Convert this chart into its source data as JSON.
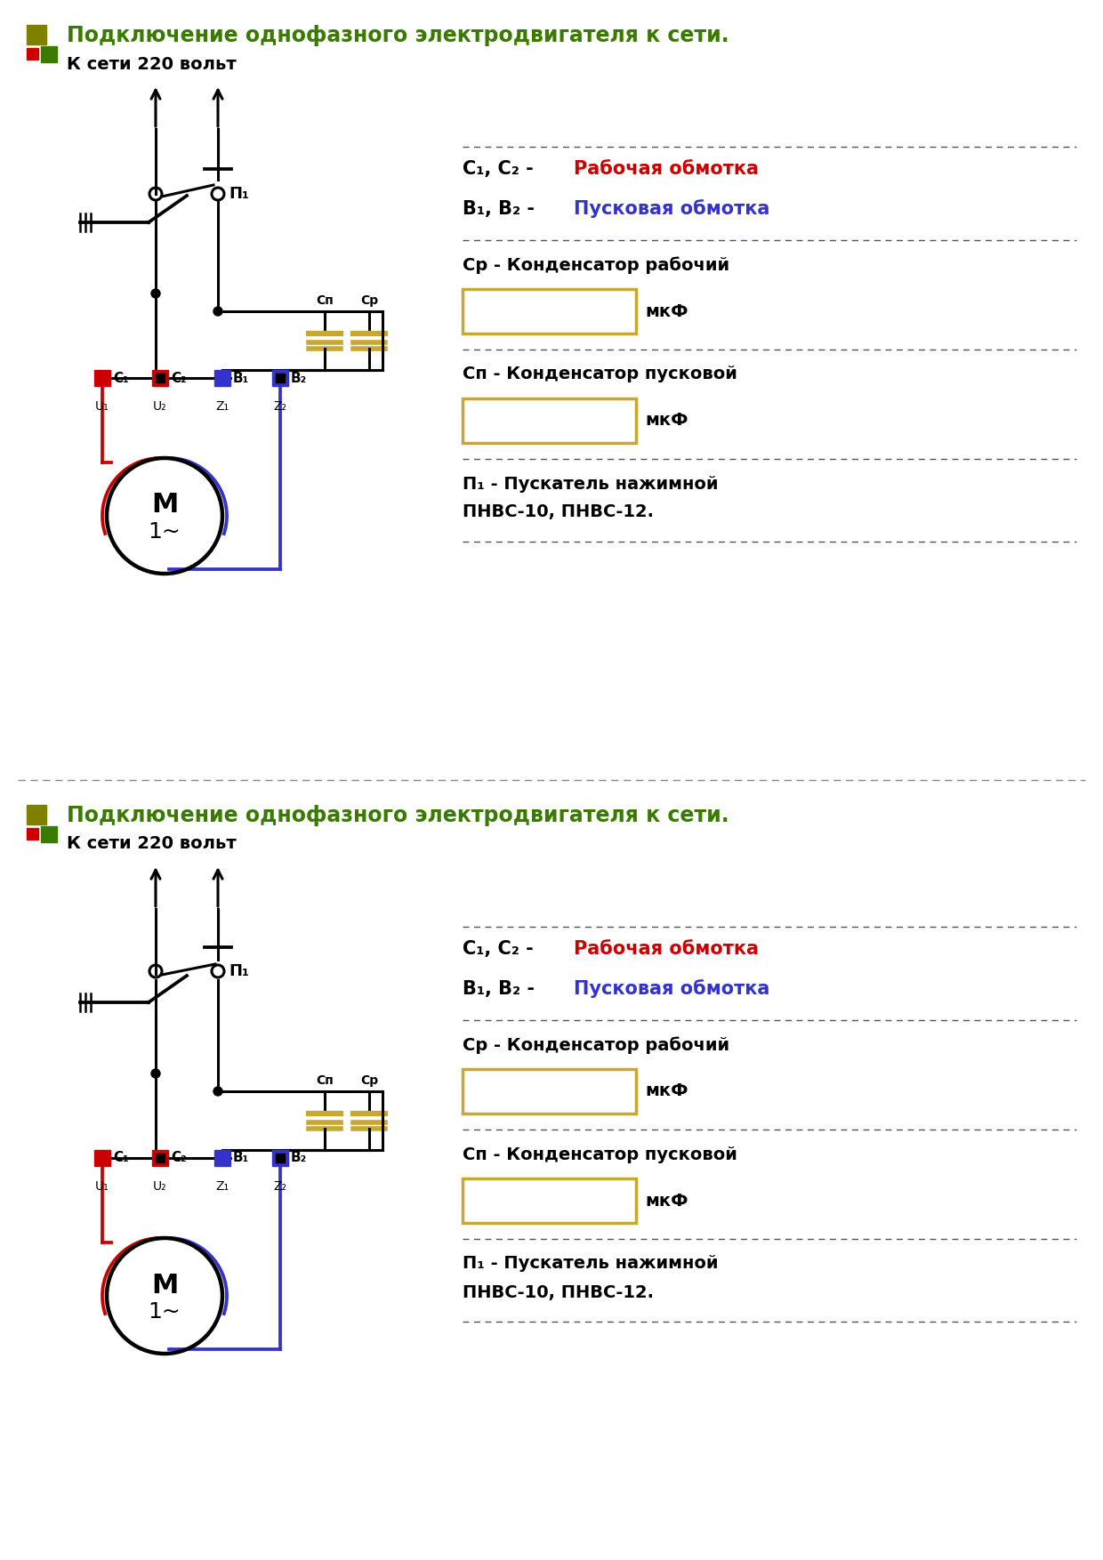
{
  "title": "Подключение однофазного электродвигателя к сети.",
  "title_color": "#3a7a00",
  "bg_color": "#ffffff",
  "subtitle_network": "К сети 220 вольт",
  "label_C1C2_black": "С₁, С₂ - ",
  "label_C1C2_red": "Рабочая обмотка",
  "label_B1B2_black": "В₁, В₂ - ",
  "label_B1B2_blue": "Пусковая обмотка",
  "label_Cp": "Ср - Конденсатор рабочий",
  "label_Cn": "Сп - Конденсатор пусковой",
  "label_mkF": "мкФ",
  "label_P1_line1": "П₁ - Пускатель нажимной",
  "label_P1_line2": "ПНВС-10, ПНВС-12.",
  "olive_color": "#808000",
  "red_color": "#cc0000",
  "green_color": "#3a7a00",
  "blue_color": "#3333cc",
  "black": "#000000",
  "gold_color": "#c8a830",
  "white": "#ffffff",
  "separator_color": "#555555",
  "section_sep_color": "#888888"
}
